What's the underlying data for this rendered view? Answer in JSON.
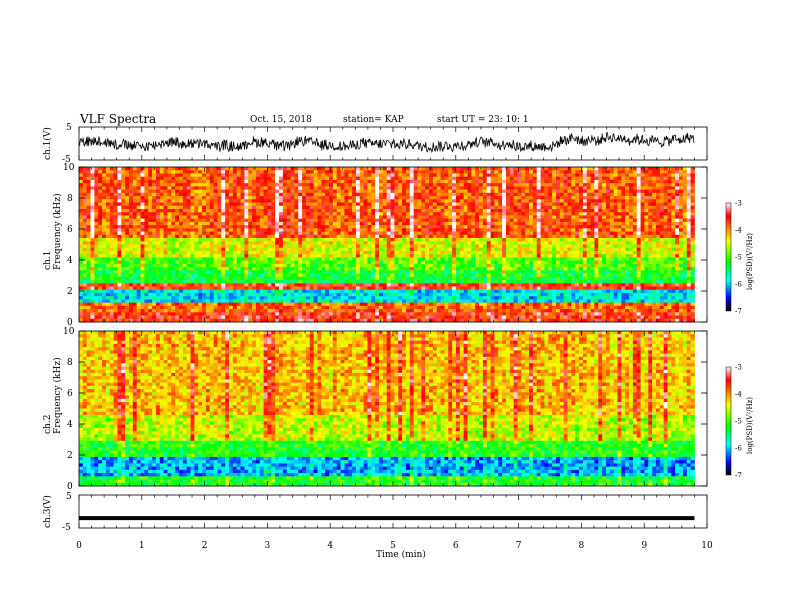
{
  "header": {
    "title": "VLF Spectra",
    "date": "Oct. 15, 2018",
    "station": "station= KAP",
    "start": "start  UT  =   23: 10: 1"
  },
  "chart_data": [
    {
      "type": "line",
      "panel": "ch1-waveform",
      "ylabel": "ch.1(V)",
      "ylim": [
        -5,
        5
      ],
      "yticks": [
        "5",
        "-5"
      ],
      "xlim": [
        0,
        10
      ],
      "series_description": "noisy waveform oscillating roughly between -2 and 3 V",
      "color": "#000000"
    },
    {
      "type": "heatmap",
      "panel": "ch1-spectrogram",
      "ylabel": "ch.1\nFrequency (kHz)",
      "ylim": [
        0,
        10
      ],
      "yticks": [
        "0",
        "2",
        "4",
        "6",
        "8",
        "10"
      ],
      "xlim": [
        0,
        10
      ],
      "colorbar": {
        "label": "log(PSD)(V²/Hz)",
        "range": [
          -7,
          -3
        ],
        "ticks": [
          "-3",
          "-4",
          "-5",
          "-6",
          "-7"
        ]
      },
      "bands_kHz": [
        {
          "from": 0.0,
          "to": 0.6,
          "level": -3.6
        },
        {
          "from": 0.6,
          "to": 1.2,
          "level": -3.9
        },
        {
          "from": 1.2,
          "to": 2.1,
          "level": -5.9
        },
        {
          "from": 2.1,
          "to": 2.4,
          "level": -3.6
        },
        {
          "from": 2.4,
          "to": 3.4,
          "level": -5.3
        },
        {
          "from": 3.4,
          "to": 4.2,
          "level": -5.0
        },
        {
          "from": 4.2,
          "to": 5.5,
          "level": -4.5
        },
        {
          "from": 5.5,
          "to": 10.0,
          "level": -3.8
        }
      ]
    },
    {
      "type": "heatmap",
      "panel": "ch2-spectrogram",
      "ylabel": "ch.2\nFrequency (kHz)",
      "ylim": [
        0,
        10
      ],
      "yticks": [
        "0",
        "2",
        "4",
        "6",
        "8",
        "10"
      ],
      "xlim": [
        0,
        10
      ],
      "colorbar": {
        "label": "log(PSD)(V²/Hz)",
        "range": [
          -7,
          -3
        ],
        "ticks": [
          "-3",
          "-4",
          "-5",
          "-6",
          "-7"
        ]
      },
      "bands_kHz": [
        {
          "from": 0.0,
          "to": 0.7,
          "level": -5.2
        },
        {
          "from": 0.7,
          "to": 1.9,
          "level": -6.1
        },
        {
          "from": 1.9,
          "to": 3.0,
          "level": -5.2
        },
        {
          "from": 3.0,
          "to": 4.5,
          "level": -4.6
        },
        {
          "from": 4.5,
          "to": 10.0,
          "level": -4.2
        }
      ]
    },
    {
      "type": "line",
      "panel": "ch3-waveform",
      "ylabel": "ch.3(V)",
      "ylim": [
        -5,
        5
      ],
      "yticks": [
        "5",
        "-5"
      ],
      "xlim": [
        0,
        10
      ],
      "series_description": "flat thick line near -2 V",
      "constant_value": -2,
      "color": "#000000"
    }
  ],
  "xaxis": {
    "label": "Time (min)",
    "ticks": [
      "0",
      "1",
      "2",
      "3",
      "4",
      "5",
      "6",
      "7",
      "8",
      "9",
      "10"
    ],
    "data_end_min": 9.8
  }
}
